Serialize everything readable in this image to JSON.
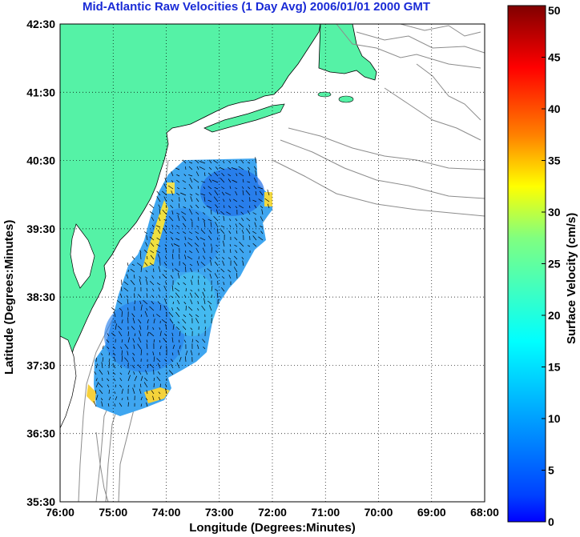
{
  "title": "Mid-Atlantic Raw Velocities (1 Day Avg) 2006/01/01 2000 GMT",
  "axes": {
    "xlabel": "Longitude (Degrees:Minutes)",
    "ylabel": "Latitude (Degrees:Minutes)",
    "x_ticks": [
      "76:00",
      "75:00",
      "74:00",
      "73:00",
      "72:00",
      "71:00",
      "70:00",
      "69:00",
      "68:00"
    ],
    "y_ticks": [
      "42:30",
      "41:30",
      "40:30",
      "39:30",
      "38:30",
      "37:30",
      "36:30",
      "35:30"
    ],
    "xlim_deg_west": [
      76,
      68
    ],
    "ylim_deg_north": [
      35.5,
      42.5
    ],
    "grid": "dotted"
  },
  "colorbar": {
    "label": "Surface Velocity (cm/s)",
    "ticks": [
      "0",
      "5",
      "10",
      "15",
      "20",
      "25",
      "30",
      "35",
      "40",
      "45",
      "50"
    ],
    "range": [
      0,
      50
    ],
    "colormap": "jet"
  },
  "colors": {
    "land": "#55f2a6",
    "coast": "#000000",
    "bathymetry": "#8c8c8c",
    "title": "#1a2bd6"
  },
  "legend_note": ""
}
